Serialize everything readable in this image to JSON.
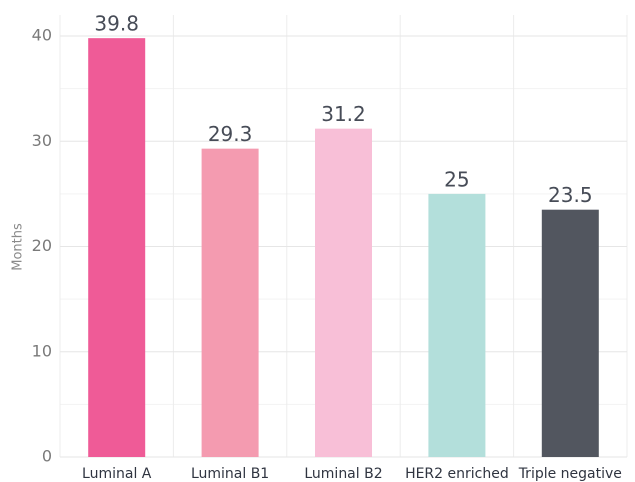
{
  "chart_data": {
    "type": "bar",
    "y_label": "Months",
    "categories": [
      "Luminal A",
      "Luminal B1",
      "Luminal B2",
      "HER2 enriched",
      "Triple negative"
    ],
    "values": [
      39.8,
      29.3,
      31.2,
      25,
      23.5
    ],
    "colors": [
      "#ef5b97",
      "#f49bb0",
      "#f8bfd7",
      "#b3dfdb",
      "#52565f"
    ],
    "ylim": [
      0,
      42
    ],
    "yticks": [
      0,
      10,
      20,
      30,
      40
    ],
    "minor_yticks": [
      5,
      15,
      25,
      35
    ],
    "grid": true
  }
}
